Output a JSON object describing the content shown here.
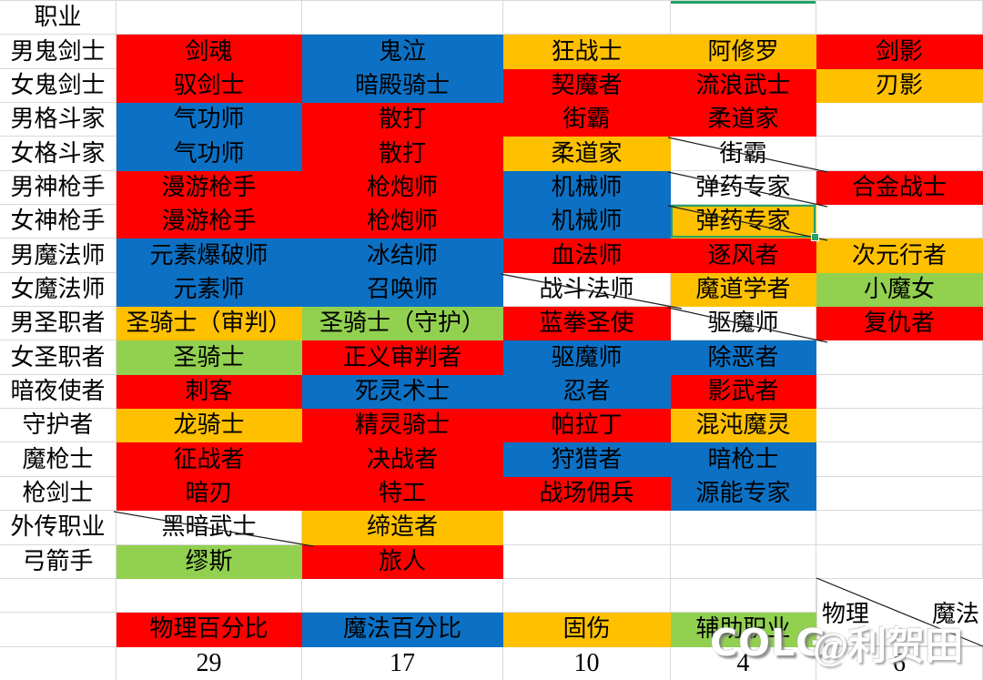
{
  "colors": {
    "red": "#FE0000",
    "blue": "#0C71C4",
    "orange": "#FFC000",
    "green": "#92D050",
    "selection": "#21A366",
    "grid": "#D9D9D9"
  },
  "header": {
    "profession": "职业"
  },
  "rows": [
    {
      "label": "男鬼剑士",
      "cells": [
        {
          "t": "剑魂",
          "c": "red"
        },
        {
          "t": "鬼泣",
          "c": "blue"
        },
        {
          "t": "狂战士",
          "c": "orange"
        },
        {
          "t": "阿修罗",
          "c": "orange"
        },
        {
          "t": "剑影",
          "c": "red"
        }
      ]
    },
    {
      "label": "女鬼剑士",
      "cells": [
        {
          "t": "驭剑士",
          "c": "red"
        },
        {
          "t": "暗殿骑士",
          "c": "blue"
        },
        {
          "t": "契魔者",
          "c": "red"
        },
        {
          "t": "流浪武士",
          "c": "red"
        },
        {
          "t": "刃影",
          "c": "orange"
        }
      ]
    },
    {
      "label": "男格斗家",
      "cells": [
        {
          "t": "气功师",
          "c": "blue"
        },
        {
          "t": "散打",
          "c": "red"
        },
        {
          "t": "街霸",
          "c": "red"
        },
        {
          "t": "柔道家",
          "c": "red"
        },
        null
      ]
    },
    {
      "label": "女格斗家",
      "cells": [
        {
          "t": "气功师",
          "c": "blue"
        },
        {
          "t": "散打",
          "c": "red"
        },
        {
          "t": "柔道家",
          "c": "orange"
        },
        {
          "t": "街霸",
          "c": "white",
          "diag": true
        },
        null
      ]
    },
    {
      "label": "男神枪手",
      "cells": [
        {
          "t": "漫游枪手",
          "c": "red"
        },
        {
          "t": "枪炮师",
          "c": "red"
        },
        {
          "t": "机械师",
          "c": "blue"
        },
        {
          "t": "弹药专家",
          "c": "white",
          "diag": true
        },
        {
          "t": "合金战士",
          "c": "red"
        }
      ]
    },
    {
      "label": "女神枪手",
      "cells": [
        {
          "t": "漫游枪手",
          "c": "red"
        },
        {
          "t": "枪炮师",
          "c": "red"
        },
        {
          "t": "机械师",
          "c": "blue"
        },
        {
          "t": "弹药专家",
          "c": "orange",
          "diag": true,
          "sel": true
        },
        null
      ]
    },
    {
      "label": "男魔法师",
      "cells": [
        {
          "t": "元素爆破师",
          "c": "blue"
        },
        {
          "t": "冰结师",
          "c": "blue"
        },
        {
          "t": "血法师",
          "c": "red"
        },
        {
          "t": "逐风者",
          "c": "red"
        },
        {
          "t": "次元行者",
          "c": "orange"
        }
      ]
    },
    {
      "label": "女魔法师",
      "cells": [
        {
          "t": "元素师",
          "c": "blue"
        },
        {
          "t": "召唤师",
          "c": "blue"
        },
        {
          "t": "战斗法师",
          "c": "white",
          "diag": true
        },
        {
          "t": "魔道学者",
          "c": "orange"
        },
        {
          "t": "小魔女",
          "c": "green"
        }
      ]
    },
    {
      "label": "男圣职者",
      "cells": [
        {
          "t": "圣骑士（审判）",
          "c": "orange"
        },
        {
          "t": "圣骑士（守护）",
          "c": "green"
        },
        {
          "t": "蓝拳圣使",
          "c": "red"
        },
        {
          "t": "驱魔师",
          "c": "white",
          "diag": true
        },
        {
          "t": "复仇者",
          "c": "red"
        }
      ]
    },
    {
      "label": "女圣职者",
      "cells": [
        {
          "t": "圣骑士",
          "c": "green"
        },
        {
          "t": "正义审判者",
          "c": "red"
        },
        {
          "t": "驱魔师",
          "c": "blue"
        },
        {
          "t": "除恶者",
          "c": "blue"
        },
        null
      ]
    },
    {
      "label": "暗夜使者",
      "cells": [
        {
          "t": "刺客",
          "c": "red"
        },
        {
          "t": "死灵术士",
          "c": "blue"
        },
        {
          "t": "忍者",
          "c": "blue"
        },
        {
          "t": "影武者",
          "c": "red"
        },
        null
      ]
    },
    {
      "label": "守护者",
      "cells": [
        {
          "t": "龙骑士",
          "c": "orange"
        },
        {
          "t": "精灵骑士",
          "c": "red"
        },
        {
          "t": "帕拉丁",
          "c": "red"
        },
        {
          "t": "混沌魔灵",
          "c": "orange"
        },
        null
      ]
    },
    {
      "label": "魔枪士",
      "cells": [
        {
          "t": "征战者",
          "c": "red"
        },
        {
          "t": "决战者",
          "c": "red"
        },
        {
          "t": "狩猎者",
          "c": "blue"
        },
        {
          "t": "暗枪士",
          "c": "blue"
        },
        null
      ]
    },
    {
      "label": "枪剑士",
      "cells": [
        {
          "t": "暗刃",
          "c": "red"
        },
        {
          "t": "特工",
          "c": "red"
        },
        {
          "t": "战场佣兵",
          "c": "red"
        },
        {
          "t": "源能专家",
          "c": "blue"
        },
        null
      ]
    },
    {
      "label": "外传职业",
      "cells": [
        {
          "t": "黑暗武士",
          "c": "white",
          "diag": true
        },
        {
          "t": "缔造者",
          "c": "orange"
        },
        null,
        null,
        null
      ]
    },
    {
      "label": "弓箭手",
      "cells": [
        {
          "t": "缪斯",
          "c": "green"
        },
        {
          "t": "旅人",
          "c": "red"
        },
        null,
        null,
        null
      ]
    }
  ],
  "footer": {
    "stats": [
      {
        "label": "物理百分比",
        "color": "red",
        "value": 29
      },
      {
        "label": "魔法百分比",
        "color": "blue",
        "value": 17
      },
      {
        "label": "固伤",
        "color": "orange",
        "value": 10
      },
      {
        "label": "辅助职业",
        "color": "green",
        "value": 4
      }
    ],
    "corner": {
      "left": "物理",
      "right": "魔法",
      "value": 6
    }
  },
  "watermark": {
    "logo": "COLG",
    "author": "@利贺田"
  }
}
